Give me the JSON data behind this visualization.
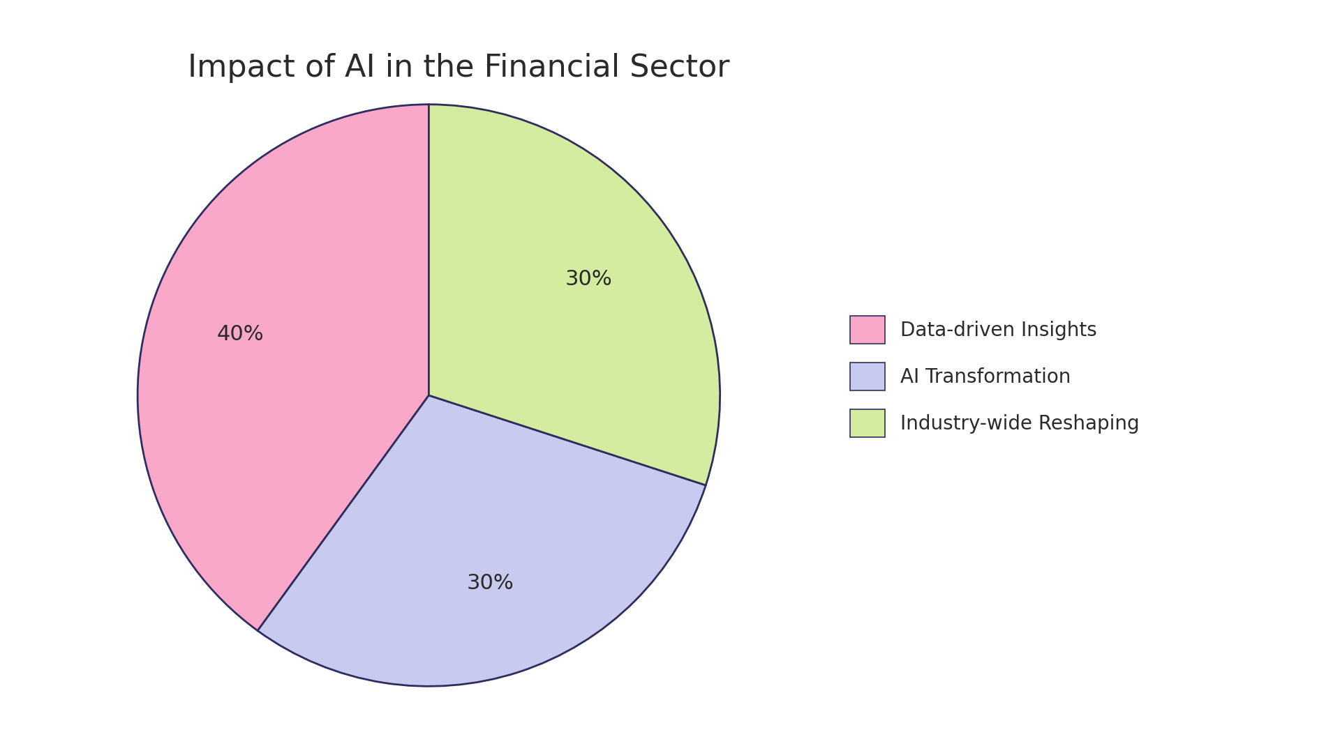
{
  "title": "Impact of AI in the Financial Sector",
  "slices": [
    40,
    30,
    30
  ],
  "labels": [
    "Data-driven Insights",
    "AI Transformation",
    "Industry-wide Reshaping"
  ],
  "colors": [
    "#F9A8C9",
    "#C8CAF0",
    "#D4ECA0"
  ],
  "edge_color": "#2e2d5e",
  "edge_width": 2.0,
  "title_fontsize": 32,
  "pct_fontsize": 22,
  "legend_fontsize": 20,
  "background_color": "#ffffff",
  "startangle": 90,
  "pct_distance": 0.68,
  "text_color": "#2a2a2a"
}
